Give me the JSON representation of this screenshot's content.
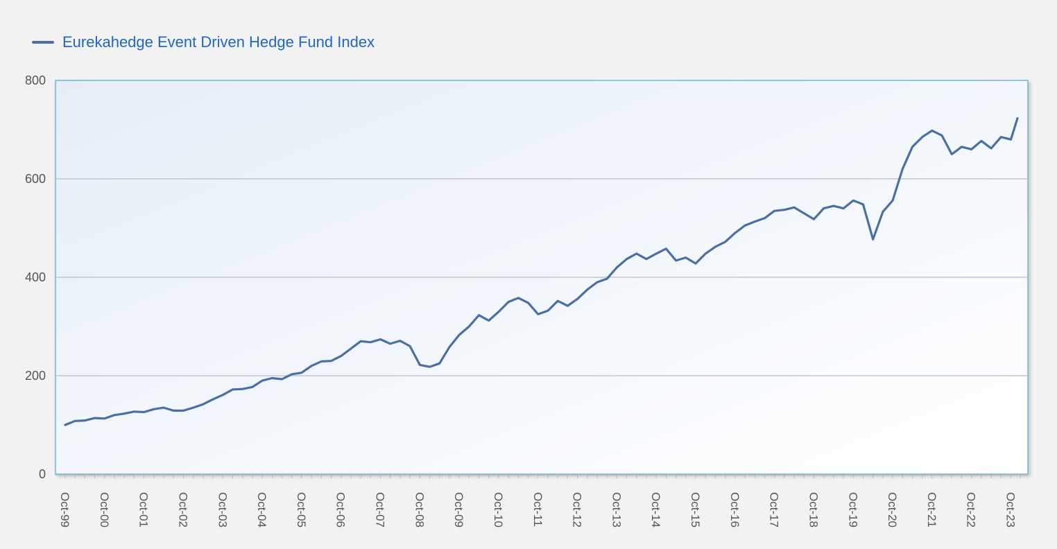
{
  "colors": {
    "series": "#4a6fa5",
    "legend_text": "#1f66c9",
    "grid": "#b9bcc2",
    "plot_border": "#6bb7d6",
    "axis_text": "#555555",
    "page_bg": "#f2f2f2"
  },
  "chart_data": {
    "type": "line",
    "title": "",
    "xlabel": "",
    "ylabel": "",
    "legend_position": "top-left",
    "grid": true,
    "ylim": [
      0,
      800
    ],
    "y_ticks": [
      0,
      200,
      400,
      600,
      800
    ],
    "x_ticks": [
      "Oct-99",
      "Oct-00",
      "Oct-01",
      "Oct-02",
      "Oct-03",
      "Oct-04",
      "Oct-05",
      "Oct-06",
      "Oct-07",
      "Oct-08",
      "Oct-09",
      "Oct-10",
      "Oct-11",
      "Oct-12",
      "Oct-13",
      "Oct-14",
      "Oct-15",
      "Oct-16",
      "Oct-17",
      "Oct-18",
      "Oct-19",
      "Oct-20",
      "Oct-21",
      "Oct-22",
      "Oct-23"
    ],
    "series": [
      {
        "name": "Eurekahedge Event Driven Hedge Fund Index",
        "points": [
          [
            "Oct-99",
            100
          ],
          [
            "Jan-00",
            108
          ],
          [
            "Apr-00",
            109
          ],
          [
            "Jul-00",
            114
          ],
          [
            "Oct-00",
            113
          ],
          [
            "Jan-01",
            120
          ],
          [
            "Apr-01",
            123
          ],
          [
            "Jul-01",
            127
          ],
          [
            "Oct-01",
            126
          ],
          [
            "Jan-02",
            132
          ],
          [
            "Apr-02",
            135
          ],
          [
            "Jul-02",
            129
          ],
          [
            "Oct-02",
            129
          ],
          [
            "Jan-03",
            135
          ],
          [
            "Apr-03",
            142
          ],
          [
            "Jul-03",
            152
          ],
          [
            "Oct-03",
            161
          ],
          [
            "Jan-04",
            172
          ],
          [
            "Apr-04",
            173
          ],
          [
            "Jul-04",
            177
          ],
          [
            "Oct-04",
            190
          ],
          [
            "Jan-05",
            195
          ],
          [
            "Apr-05",
            193
          ],
          [
            "Jul-05",
            203
          ],
          [
            "Oct-05",
            206
          ],
          [
            "Jan-06",
            220
          ],
          [
            "Apr-06",
            229
          ],
          [
            "Jul-06",
            230
          ],
          [
            "Oct-06",
            240
          ],
          [
            "Jan-07",
            255
          ],
          [
            "Apr-07",
            270
          ],
          [
            "Jul-07",
            268
          ],
          [
            "Oct-07",
            274
          ],
          [
            "Jan-08",
            265
          ],
          [
            "Apr-08",
            271
          ],
          [
            "Jul-08",
            260
          ],
          [
            "Oct-08",
            222
          ],
          [
            "Jan-09",
            218
          ],
          [
            "Apr-09",
            225
          ],
          [
            "Jul-09",
            258
          ],
          [
            "Oct-09",
            283
          ],
          [
            "Jan-10",
            300
          ],
          [
            "Apr-10",
            323
          ],
          [
            "Jul-10",
            312
          ],
          [
            "Oct-10",
            330
          ],
          [
            "Jan-11",
            350
          ],
          [
            "Apr-11",
            358
          ],
          [
            "Jul-11",
            348
          ],
          [
            "Oct-11",
            325
          ],
          [
            "Jan-12",
            332
          ],
          [
            "Apr-12",
            352
          ],
          [
            "Jul-12",
            342
          ],
          [
            "Oct-12",
            356
          ],
          [
            "Jan-13",
            375
          ],
          [
            "Apr-13",
            390
          ],
          [
            "Jul-13",
            397
          ],
          [
            "Oct-13",
            420
          ],
          [
            "Jan-14",
            437
          ],
          [
            "Apr-14",
            448
          ],
          [
            "Jul-14",
            437
          ],
          [
            "Oct-14",
            448
          ],
          [
            "Jan-15",
            458
          ],
          [
            "Apr-15",
            434
          ],
          [
            "Jul-15",
            440
          ],
          [
            "Oct-15",
            428
          ],
          [
            "Jan-16",
            448
          ],
          [
            "Apr-16",
            462
          ],
          [
            "Jul-16",
            472
          ],
          [
            "Oct-16",
            490
          ],
          [
            "Jan-17",
            505
          ],
          [
            "Apr-17",
            513
          ],
          [
            "Jul-17",
            520
          ],
          [
            "Oct-17",
            535
          ],
          [
            "Jan-18",
            537
          ],
          [
            "Apr-18",
            542
          ],
          [
            "Jul-18",
            530
          ],
          [
            "Oct-18",
            518
          ],
          [
            "Jan-19",
            540
          ],
          [
            "Apr-19",
            545
          ],
          [
            "Jul-19",
            540
          ],
          [
            "Oct-19",
            556
          ],
          [
            "Jan-20",
            548
          ],
          [
            "Apr-20",
            477
          ],
          [
            "Jul-20",
            533
          ],
          [
            "Oct-20",
            556
          ],
          [
            "Jan-21",
            620
          ],
          [
            "Apr-21",
            665
          ],
          [
            "Jul-21",
            685
          ],
          [
            "Oct-21",
            698
          ],
          [
            "Jan-22",
            688
          ],
          [
            "Apr-22",
            650
          ],
          [
            "Jul-22",
            665
          ],
          [
            "Oct-22",
            660
          ],
          [
            "Jan-23",
            677
          ],
          [
            "Apr-23",
            662
          ],
          [
            "Jul-23",
            685
          ],
          [
            "Oct-23",
            680
          ],
          [
            "Dec-23",
            723
          ]
        ]
      }
    ]
  }
}
